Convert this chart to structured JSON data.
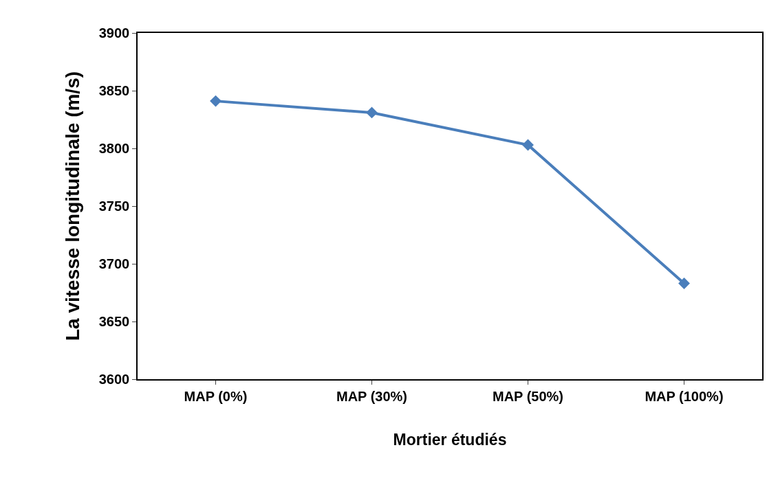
{
  "chart_data": {
    "type": "line",
    "xlabel": "Mortier étudiés",
    "ylabel": "La vitesse longitudinale (m/s)",
    "categories": [
      "MAP (0%)",
      "MAP (30%)",
      "MAP (50%)",
      "MAP (100%)"
    ],
    "series": [
      {
        "color": "#4a7ebb",
        "values": [
          3841,
          3831,
          3803,
          3683
        ]
      }
    ],
    "ylim": [
      3600,
      3900
    ],
    "yticks": [
      3600,
      3650,
      3700,
      3750,
      3800,
      3850,
      3900
    ],
    "grid": false,
    "marker": "diamond",
    "line_style": "solid"
  }
}
